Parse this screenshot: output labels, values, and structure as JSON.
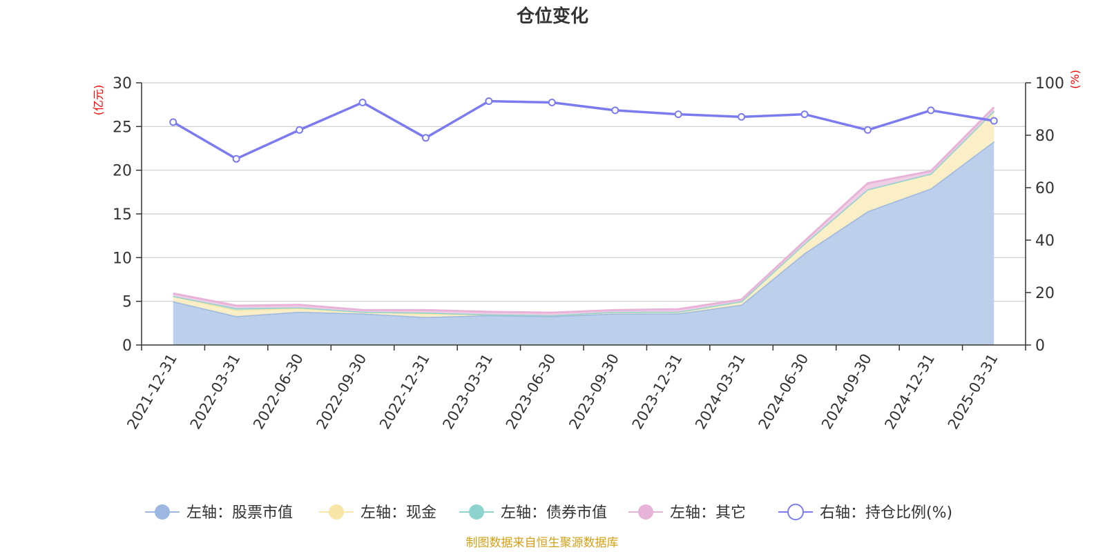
{
  "chart_data": {
    "type": "area",
    "title": "仓位变化",
    "ylabel_left": "(亿元)",
    "ylabel_right": "(%)",
    "ylim_left": [
      0,
      30
    ],
    "yticks_left": [
      0,
      5,
      10,
      15,
      20,
      25,
      30
    ],
    "ylim_right": [
      0,
      100
    ],
    "yticks_right": [
      0,
      20,
      40,
      60,
      80,
      100
    ],
    "grid": true,
    "legend_position": "bottom",
    "categories": [
      "2021-12-31",
      "2022-03-31",
      "2022-06-30",
      "2022-09-30",
      "2022-12-31",
      "2023-03-31",
      "2023-06-30",
      "2023-09-30",
      "2023-12-31",
      "2024-03-31",
      "2024-06-30",
      "2024-09-30",
      "2024-12-31",
      "2025-03-31"
    ],
    "series": [
      {
        "name": "左轴：股票市值",
        "axis": "left",
        "stacked": true,
        "color": "#9db8e0",
        "fill": "#b8cdea",
        "values": [
          5.0,
          3.3,
          3.8,
          3.6,
          3.2,
          3.4,
          3.3,
          3.6,
          3.6,
          4.6,
          10.5,
          15.3,
          17.9,
          23.3
        ]
      },
      {
        "name": "左轴：现金",
        "axis": "left",
        "stacked": true,
        "color": "#f7e6a6",
        "fill": "#faeec4",
        "values": [
          0.6,
          0.7,
          0.4,
          0.2,
          0.4,
          0.1,
          0.1,
          0.2,
          0.2,
          0.4,
          1.1,
          2.5,
          1.7,
          3.5
        ]
      },
      {
        "name": "左轴：债券市值",
        "axis": "left",
        "stacked": true,
        "color": "#8fd3cf",
        "fill": "#b3e2de",
        "values": [
          0.0,
          0.2,
          0.1,
          0.0,
          0.1,
          0.0,
          0.0,
          0.0,
          0.0,
          0.0,
          0.0,
          0.0,
          0.0,
          0.0
        ]
      },
      {
        "name": "左轴：其它",
        "axis": "left",
        "stacked": true,
        "color": "#e8b3d8",
        "fill": "#f0cce4",
        "values": [
          0.3,
          0.3,
          0.3,
          0.2,
          0.3,
          0.3,
          0.3,
          0.2,
          0.3,
          0.2,
          0.3,
          0.7,
          0.3,
          0.4
        ]
      },
      {
        "name": "右轴：持仓比例(%)",
        "axis": "right",
        "stacked": false,
        "color": "#7b7bef",
        "values": [
          85.0,
          71.0,
          82.0,
          92.5,
          79.0,
          93.0,
          92.5,
          89.5,
          88.0,
          87.0,
          88.0,
          82.0,
          89.5,
          85.5
        ]
      }
    ]
  },
  "source_note": "制图数据来自恒生聚源数据库"
}
